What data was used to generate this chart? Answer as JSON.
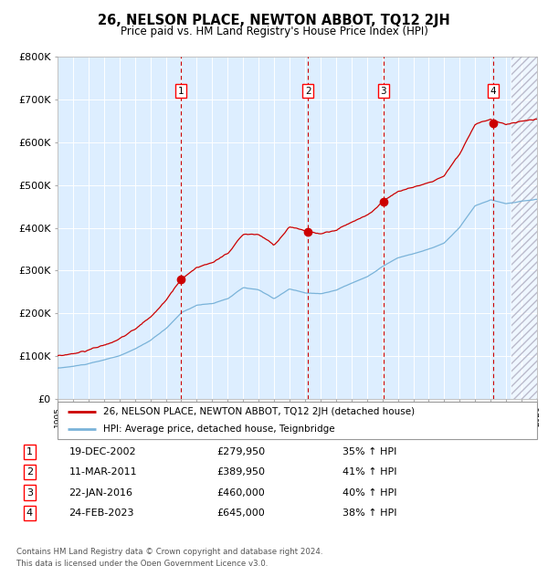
{
  "title": "26, NELSON PLACE, NEWTON ABBOT, TQ12 2JH",
  "subtitle": "Price paid vs. HM Land Registry's House Price Index (HPI)",
  "ylim": [
    0,
    800000
  ],
  "yticks": [
    0,
    100000,
    200000,
    300000,
    400000,
    500000,
    600000,
    700000,
    800000
  ],
  "ytick_labels": [
    "£0",
    "£100K",
    "£200K",
    "£300K",
    "£400K",
    "£500K",
    "£600K",
    "£700K",
    "£800K"
  ],
  "x_start_year": 1995,
  "x_end_year": 2026,
  "sales": [
    {
      "date_dec": 2002.97,
      "price": 279950,
      "label": "1",
      "date_str": "19-DEC-2002",
      "pct": "35% ↑ HPI"
    },
    {
      "date_dec": 2011.19,
      "price": 389950,
      "label": "2",
      "date_str": "11-MAR-2011",
      "pct": "41% ↑ HPI"
    },
    {
      "date_dec": 2016.06,
      "price": 460000,
      "label": "3",
      "date_str": "22-JAN-2016",
      "pct": "40% ↑ HPI"
    },
    {
      "date_dec": 2023.15,
      "price": 645000,
      "label": "4",
      "date_str": "24-FEB-2023",
      "pct": "38% ↑ HPI"
    }
  ],
  "hpi_color": "#7ab3d9",
  "price_color": "#cc0000",
  "bg_color": "#ddeeff",
  "grid_color": "#ffffff",
  "sale_marker_color": "#cc0000",
  "dashed_line_color": "#cc0000",
  "legend_label_price": "26, NELSON PLACE, NEWTON ABBOT, TQ12 2JH (detached house)",
  "legend_label_hpi": "HPI: Average price, detached house, Teignbridge",
  "footer": "Contains HM Land Registry data © Crown copyright and database right 2024.\nThis data is licensed under the Open Government Licence v3.0.",
  "hpi_data": {
    "1995.0": 72000,
    "1996.0": 76000,
    "1997.0": 82000,
    "1998.0": 90000,
    "1999.0": 100000,
    "2000.0": 115000,
    "2001.0": 135000,
    "2002.0": 162000,
    "2003.0": 200000,
    "2004.0": 218000,
    "2005.0": 222000,
    "2006.0": 232000,
    "2007.0": 258000,
    "2008.0": 252000,
    "2009.0": 232000,
    "2010.0": 255000,
    "2011.0": 245000,
    "2012.0": 243000,
    "2013.0": 252000,
    "2014.0": 268000,
    "2015.0": 283000,
    "2016.0": 308000,
    "2017.0": 328000,
    "2018.0": 338000,
    "2019.0": 348000,
    "2020.0": 362000,
    "2021.0": 398000,
    "2022.0": 448000,
    "2023.0": 462000,
    "2024.0": 452000,
    "2025.0": 458000,
    "2026.0": 462000
  }
}
